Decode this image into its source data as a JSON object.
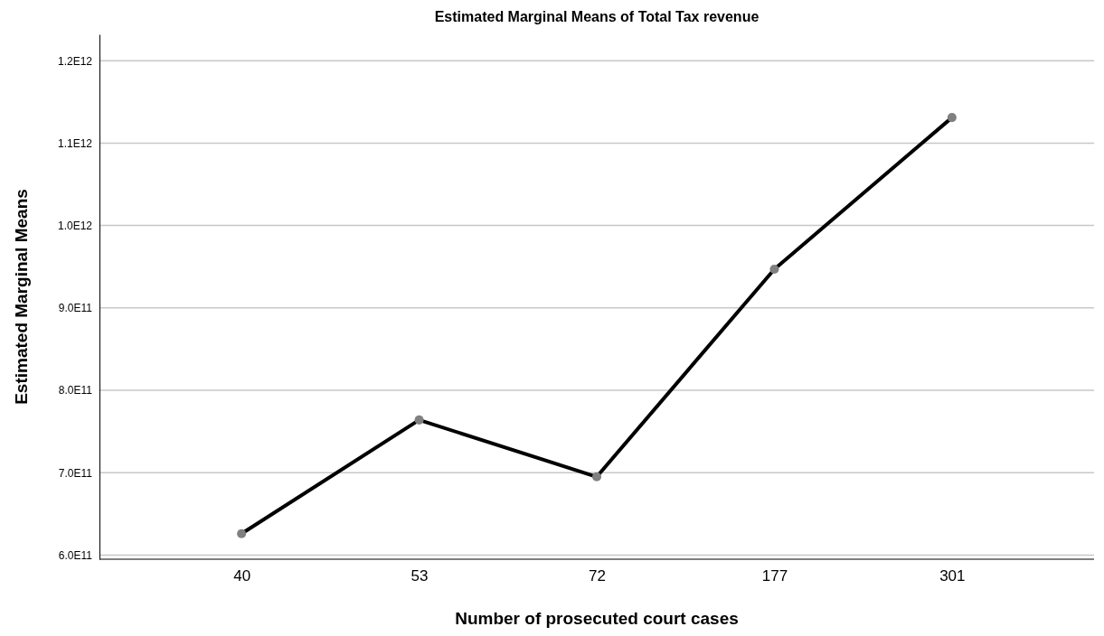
{
  "chart_data": {
    "type": "line",
    "title": "Estimated Marginal Means of Total Tax revenue",
    "xlabel": "Number of prosecuted court cases",
    "ylabel": "Estimated Marginal Means",
    "categories": [
      "40",
      "53",
      "72",
      "177",
      "301"
    ],
    "series": [
      {
        "color": "#000000",
        "values": [
          626000000000.0,
          764000000000.0,
          695000000000.0,
          947000000000.0,
          1131000000000.0
        ]
      }
    ],
    "ylim": [
      595000000000.0,
      1232000000000.0
    ],
    "yticks": [
      {
        "value": 600000000000.0,
        "label": "6.0E11"
      },
      {
        "value": 700000000000.0,
        "label": "7.0E11"
      },
      {
        "value": 800000000000.0,
        "label": "8.0E11"
      },
      {
        "value": 900000000000.0,
        "label": "9.0E11"
      },
      {
        "value": 1000000000000.0,
        "label": "1.0E12"
      },
      {
        "value": 1100000000000.0,
        "label": "1.1E12"
      },
      {
        "value": 1200000000000.0,
        "label": "1.2E12"
      }
    ],
    "grid": "y",
    "marker": "circle",
    "line_style": "solid"
  }
}
